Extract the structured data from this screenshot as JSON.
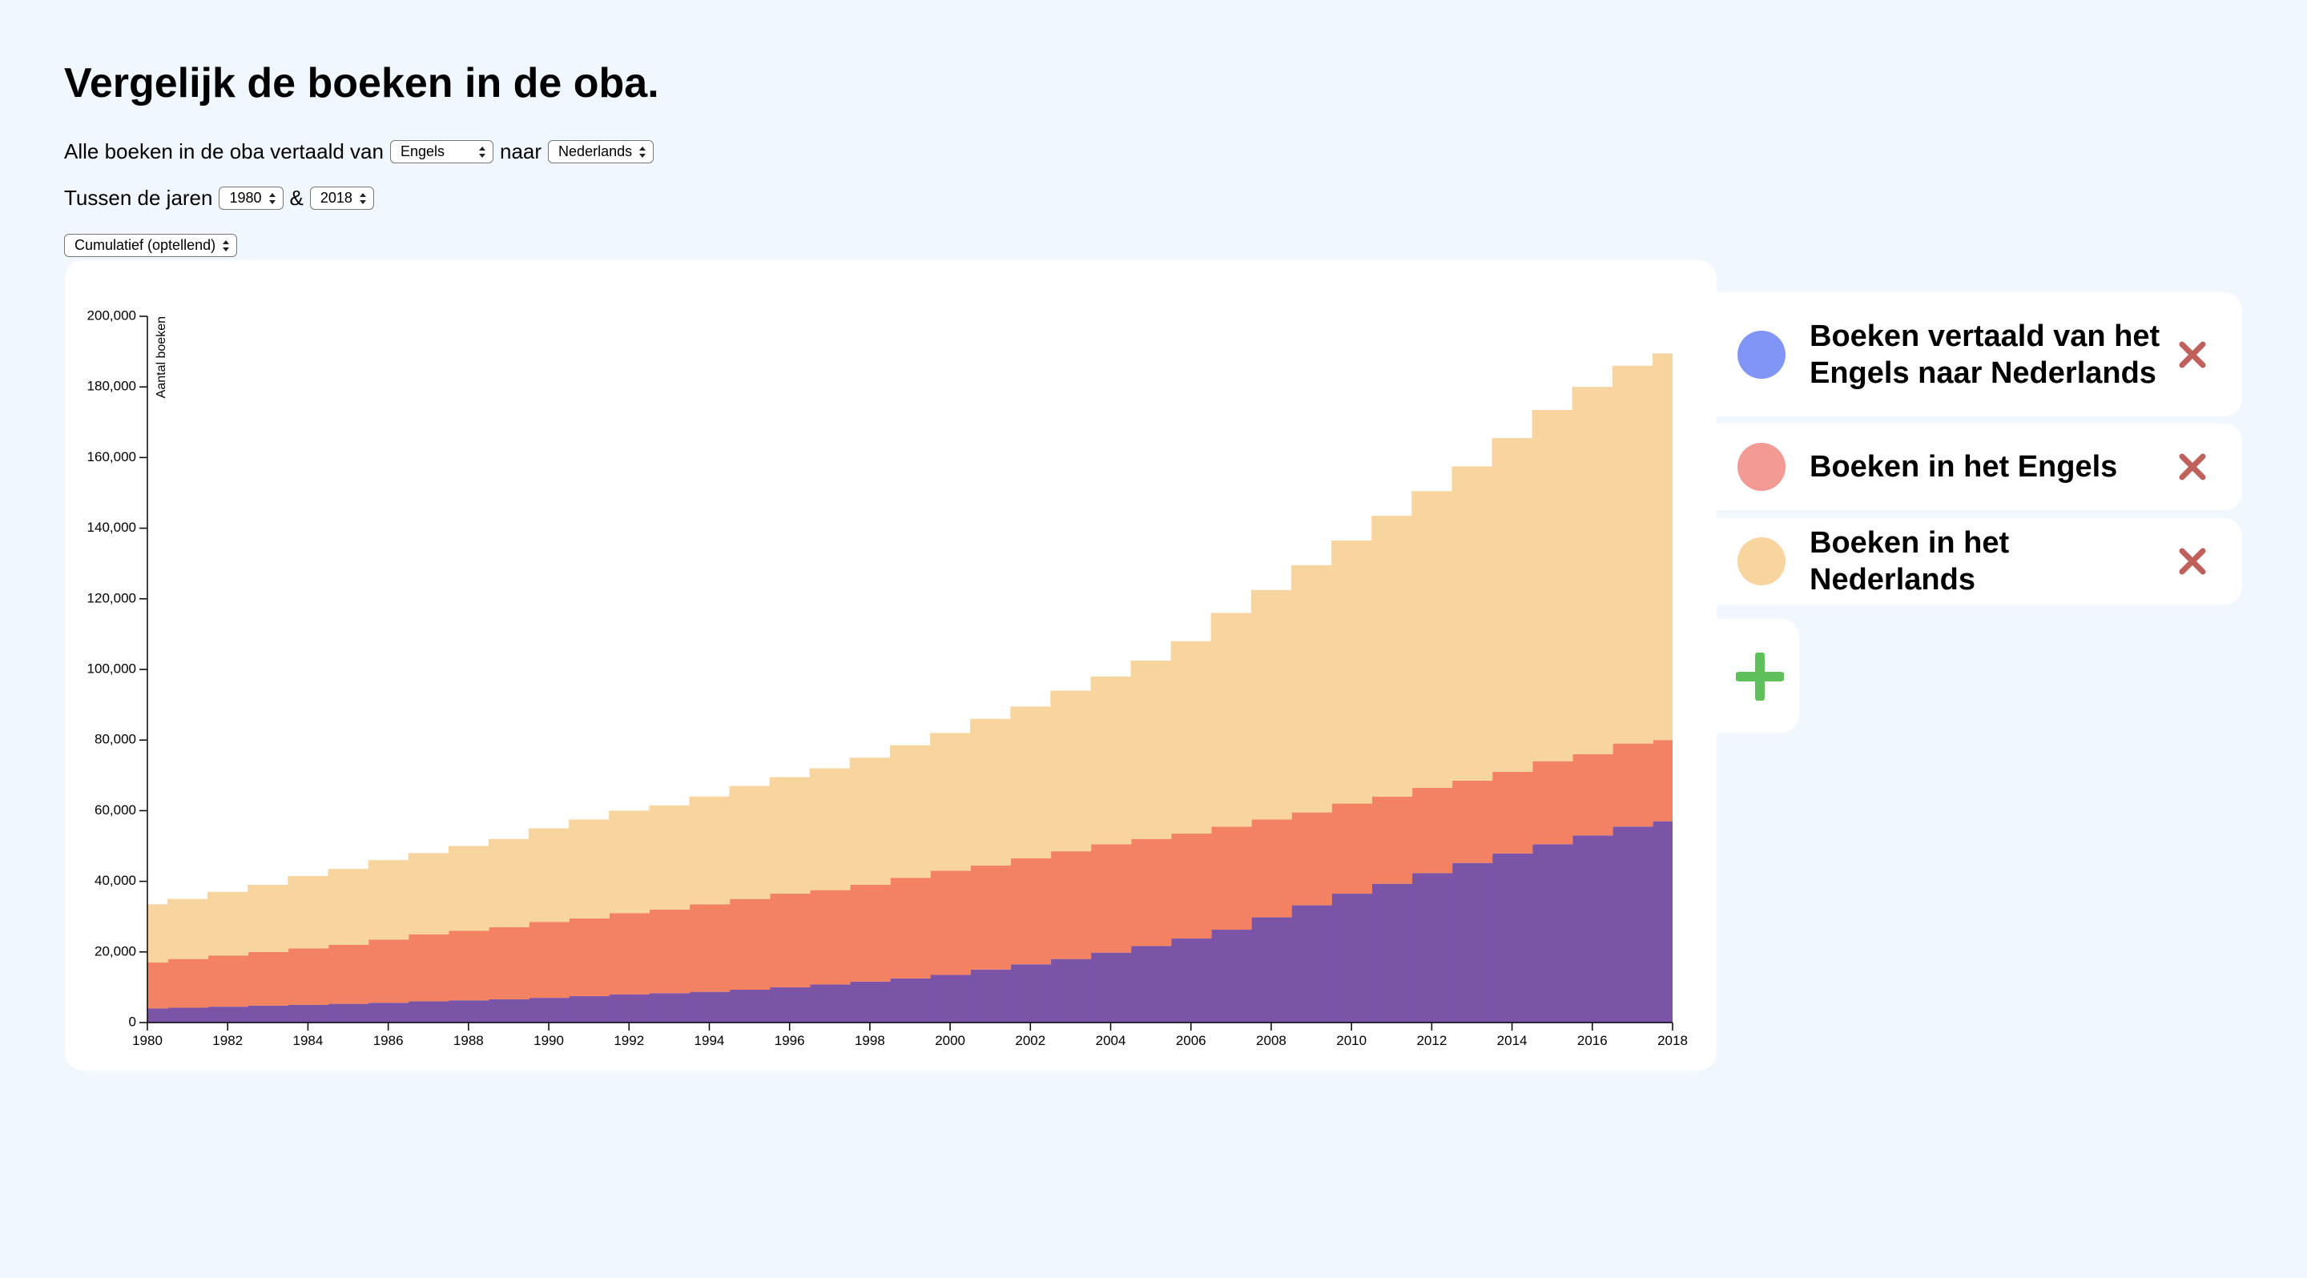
{
  "header": {
    "title": "Vergelijk de boeken in de oba."
  },
  "controls": {
    "from_text": "Alle boeken in de oba vertaald van",
    "from_value": "Engels",
    "to_text": "naar",
    "to_value": "Nederlands",
    "years_text": "Tussen de jaren",
    "start_year": "1980",
    "and_text": "&",
    "end_year": "2018",
    "mode": "Cumulatief (optellend)"
  },
  "chart_data": {
    "type": "stacked-step-area",
    "ylabel": "Aantal boeken",
    "x": [
      1980,
      1981,
      1982,
      1983,
      1984,
      1985,
      1986,
      1987,
      1988,
      1989,
      1990,
      1991,
      1992,
      1993,
      1994,
      1995,
      1996,
      1997,
      1998,
      1999,
      2000,
      2001,
      2002,
      2003,
      2004,
      2005,
      2006,
      2007,
      2008,
      2009,
      2010,
      2011,
      2012,
      2013,
      2014,
      2015,
      2016,
      2017,
      2018
    ],
    "xlim": [
      1980,
      2018
    ],
    "xticks": [
      1980,
      1982,
      1984,
      1986,
      1988,
      1990,
      1992,
      1994,
      1996,
      1998,
      2000,
      2002,
      2004,
      2006,
      2008,
      2010,
      2012,
      2014,
      2016,
      2018
    ],
    "ylim": [
      0,
      200000
    ],
    "yticks": [
      0,
      {
        "value": 20000,
        "label": "20,000"
      },
      {
        "value": 40000,
        "label": "40,000"
      },
      {
        "value": 60000,
        "label": "60,000"
      },
      {
        "value": 80000,
        "label": "80,000"
      },
      {
        "value": 100000,
        "label": "100,000"
      },
      {
        "value": 120000,
        "label": "120,000"
      },
      {
        "value": 140000,
        "label": "140,000"
      },
      {
        "value": 160000,
        "label": "160,000"
      },
      {
        "value": 180000,
        "label": "180,000"
      },
      {
        "value": 200000,
        "label": "200,000"
      }
    ],
    "series": [
      {
        "name": "Boeken vertaald van het Engels naar Nederlands",
        "color": "#7b54a8",
        "marker_color": "#8095f5",
        "values": [
          4000,
          4200,
          4500,
          4800,
          5000,
          5300,
          5600,
          6000,
          6300,
          6600,
          7000,
          7500,
          8000,
          8300,
          8700,
          9300,
          10000,
          10800,
          11600,
          12500,
          13500,
          15000,
          16500,
          18000,
          19800,
          21700,
          23800,
          26300,
          29800,
          33200,
          36500,
          39300,
          42300,
          45200,
          47900,
          50500,
          53000,
          55500,
          57000
        ]
      },
      {
        "name": "Boeken in het Engels",
        "color": "#f38262",
        "marker_color": "#f49a94",
        "values": [
          13000,
          13800,
          14500,
          15200,
          16000,
          16700,
          17900,
          19000,
          19700,
          20400,
          21500,
          22000,
          23000,
          23700,
          24800,
          25700,
          26500,
          26700,
          27400,
          28500,
          29500,
          29500,
          30000,
          30500,
          30700,
          30300,
          29700,
          29200,
          27700,
          26300,
          25500,
          24700,
          24200,
          23300,
          23100,
          23500,
          23000,
          23500,
          23000
        ]
      },
      {
        "name": "Boeken in het Nederlands",
        "color": "#f8d49f",
        "marker_color": "#f8d49f",
        "values": [
          16500,
          17000,
          18000,
          19000,
          20500,
          21500,
          22500,
          23000,
          24000,
          25000,
          26500,
          28000,
          29000,
          29500,
          30500,
          32000,
          33000,
          34500,
          36000,
          37500,
          39000,
          41500,
          43000,
          45500,
          47500,
          50500,
          54500,
          60500,
          65000,
          70000,
          74500,
          79500,
          84000,
          89000,
          94500,
          99500,
          104000,
          107000,
          109500
        ]
      }
    ]
  }
}
